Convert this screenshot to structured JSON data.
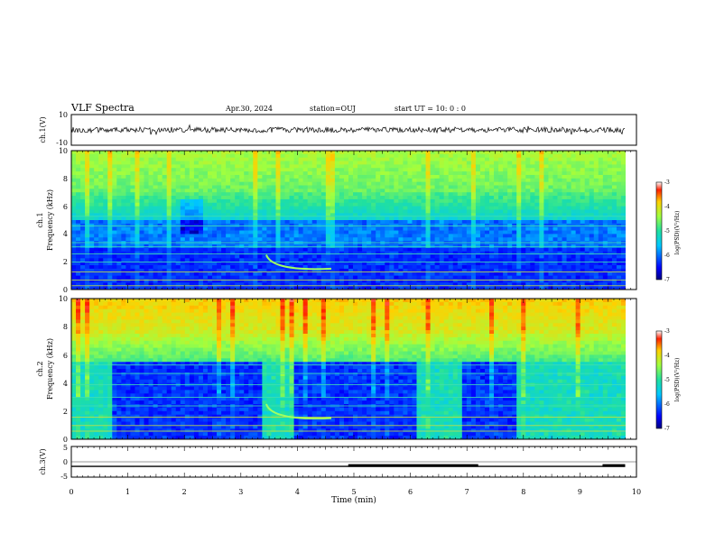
{
  "header": {
    "title": "VLF Spectra",
    "date": "Apr.30, 2024",
    "station": "station=OUJ",
    "start": "start  UT =   10: 0  : 0"
  },
  "colors": {
    "background": "#ffffff",
    "axis": "#000000",
    "spec_low": "#1a1aa8",
    "spec_mid": "#22d0c8",
    "spec_high": "#e8c020"
  },
  "chart_data": [
    {
      "name": "ch1-waveform",
      "type": "line",
      "ylabel": "ch.1(V)",
      "ylim": [
        -10,
        10
      ],
      "yticks": [
        "10",
        "-10"
      ],
      "xlim": [
        0,
        10
      ]
    },
    {
      "name": "ch1-spectrogram",
      "type": "heatmap",
      "ylabel": "ch.1\nFrequency (kHz)",
      "ylabel_lines": [
        "ch.1",
        "Frequency  (kHz)"
      ],
      "ylim": [
        0,
        10
      ],
      "yticks": [
        "0",
        "2",
        "4",
        "6",
        "8",
        "10"
      ],
      "xlim": [
        0,
        10
      ],
      "colorbar": {
        "label": "log(PSD)(V²/Hz)",
        "range": [
          -7,
          -3
        ],
        "ticks": [
          "-3",
          "-4",
          "-5",
          "-6",
          "-7"
        ]
      }
    },
    {
      "name": "ch2-spectrogram",
      "type": "heatmap",
      "ylabel_lines": [
        "ch.2",
        "Frequency  (kHz)"
      ],
      "ylim": [
        0,
        10
      ],
      "yticks": [
        "0",
        "2",
        "4",
        "6",
        "8",
        "10"
      ],
      "xlim": [
        0,
        10
      ],
      "colorbar": {
        "label": "log(PSD)(V²/Hz)",
        "range": [
          -7,
          -3
        ],
        "ticks": [
          "-3",
          "-4",
          "-5",
          "-6",
          "-7"
        ]
      }
    },
    {
      "name": "ch3-level",
      "type": "line",
      "ylabel": "ch.3(V)",
      "ylim": [
        -5,
        5
      ],
      "yticks": [
        "5",
        "0",
        "-5"
      ],
      "xlim": [
        0,
        10
      ],
      "xlabel": "Time  (min)",
      "xticks": [
        "0",
        "1",
        "2",
        "3",
        "4",
        "5",
        "6",
        "7",
        "8",
        "9",
        "10"
      ],
      "series": [
        {
          "x": [
            0,
            4.9,
            7.2,
            9.4,
            9.8
          ],
          "y": [
            -1.5,
            -1.2,
            -1.5,
            -1.2,
            -1.2
          ]
        }
      ]
    }
  ]
}
